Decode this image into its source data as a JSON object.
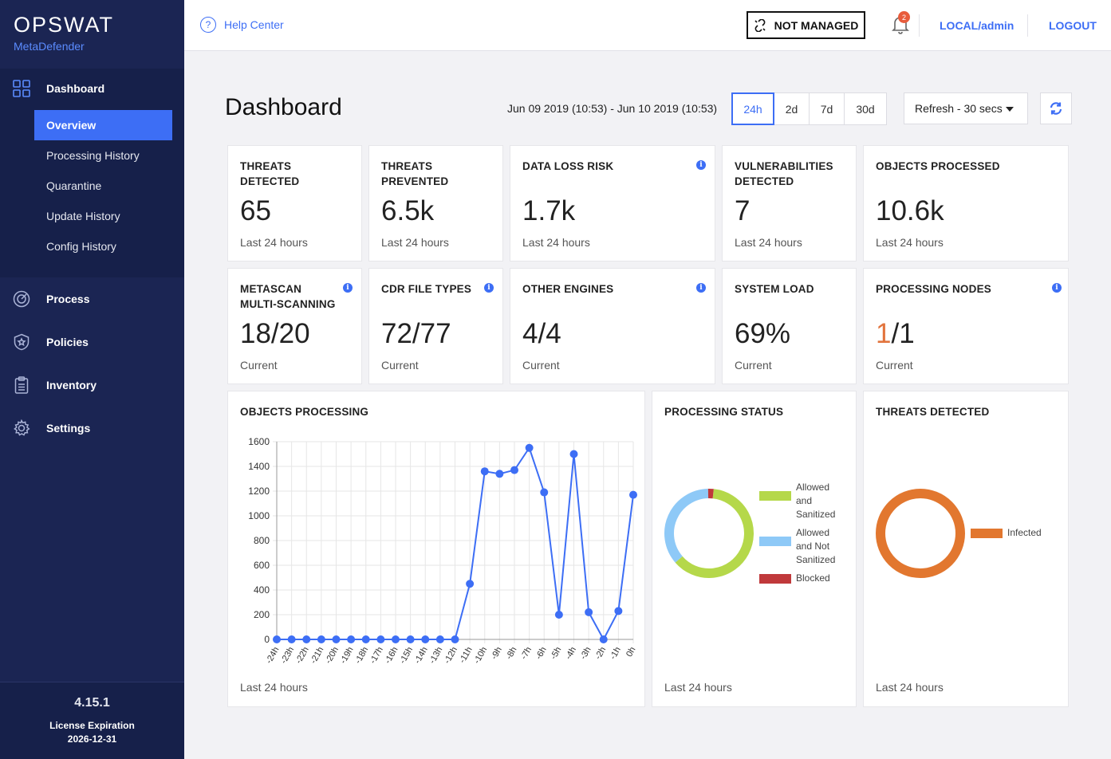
{
  "brand": {
    "name": "OPSWAT",
    "product": "MetaDefender"
  },
  "sidebar": {
    "dashboard_label": "Dashboard",
    "subitems": [
      "Overview",
      "Processing History",
      "Quarantine",
      "Update History",
      "Config History"
    ],
    "items": [
      {
        "label": "Process",
        "icon": "target-icon"
      },
      {
        "label": "Policies",
        "icon": "shield-star-icon"
      },
      {
        "label": "Inventory",
        "icon": "clipboard-icon"
      },
      {
        "label": "Settings",
        "icon": "gear-icon"
      }
    ],
    "version": "4.15.1",
    "license_label": "License Expiration",
    "license_date": "2026-12-31"
  },
  "topbar": {
    "help_label": "Help Center",
    "not_managed_label": "NOT MANAGED",
    "notification_count": "2",
    "user_label": "LOCAL/admin",
    "logout_label": "LOGOUT"
  },
  "header": {
    "title": "Dashboard",
    "date_range": "Jun 09 2019 (10:53) - Jun 10 2019 (10:53)",
    "ranges": [
      "24h",
      "2d",
      "7d",
      "30d"
    ],
    "selected_range": "24h",
    "refresh_label": "Refresh - 30 secs"
  },
  "stats": [
    {
      "title": "THREATS\nDETECTED",
      "value": "65",
      "sub": "Last 24 hours"
    },
    {
      "title": "THREATS\nPREVENTED",
      "value": "6.5k",
      "sub": "Last 24 hours"
    },
    {
      "title": "DATA LOSS RISK",
      "value": "1.7k",
      "sub": "Last 24 hours"
    },
    {
      "title": "VULNERABILITIES\nDETECTED",
      "value": "7",
      "sub": "Last 24 hours"
    },
    {
      "title": "OBJECTS PROCESSED",
      "value": "10.6k",
      "sub": "Last 24 hours"
    },
    {
      "title": "METASCAN\nMULTI-SCANNING",
      "value": "18/20",
      "sub": "Current"
    },
    {
      "title": "CDR FILE TYPES",
      "value": "72/77",
      "sub": "Current"
    },
    {
      "title": "OTHER ENGINES",
      "value": "4/4",
      "sub": "Current"
    },
    {
      "title": "SYSTEM LOAD",
      "value": "69%",
      "sub": "Current"
    },
    {
      "title": "PROCESSING NODES",
      "value_part1": "1",
      "value_part2": "/1",
      "sub": "Current"
    }
  ],
  "panels": {
    "objects_processing": {
      "title": "OBJECTS PROCESSING",
      "sub": "Last 24 hours"
    },
    "processing_status": {
      "title": "PROCESSING STATUS",
      "sub": "Last 24 hours"
    },
    "threats_detected": {
      "title": "THREATS DETECTED",
      "sub": "Last 24 hours"
    }
  },
  "colors": {
    "accent": "#3d6ef5",
    "sidebar": "#1b2553",
    "allowed_sanitized": "#b5d84a",
    "allowed_not_sanitized": "#8ec9f7",
    "blocked": "#c0393b",
    "infected": "#e2772f"
  },
  "chart_data": [
    {
      "type": "line",
      "x": [
        "-24h",
        "-23h",
        "-22h",
        "-21h",
        "-20h",
        "-19h",
        "-18h",
        "-17h",
        "-16h",
        "-15h",
        "-14h",
        "-13h",
        "-12h",
        "-11h",
        "-10h",
        "-9h",
        "-8h",
        "-7h",
        "-6h",
        "-5h",
        "-4h",
        "-3h",
        "-2h",
        "-1h",
        "0h"
      ],
      "values": [
        0,
        0,
        0,
        0,
        0,
        0,
        0,
        0,
        0,
        0,
        0,
        0,
        0,
        450,
        1360,
        1340,
        1370,
        1550,
        1190,
        200,
        1500,
        220,
        0,
        230,
        1170
      ],
      "ylim": [
        0,
        1600
      ],
      "yticks": [
        0,
        200,
        400,
        600,
        800,
        1000,
        1200,
        1400,
        1600
      ],
      "grid": true,
      "color": "#3d6ef5"
    },
    {
      "type": "pie",
      "subtype": "doughnut",
      "series": [
        {
          "name": "Allowed and Sanitized",
          "value": 62,
          "color": "#b5d84a"
        },
        {
          "name": "Allowed and Not Sanitized",
          "value": 36,
          "color": "#8ec9f7"
        },
        {
          "name": "Blocked",
          "value": 2,
          "color": "#c0393b"
        }
      ],
      "legend_lines": [
        [
          "Allowed",
          "and",
          "Sanitized"
        ],
        [
          "Allowed",
          "and Not",
          "Sanitized"
        ],
        [
          "Blocked"
        ]
      ],
      "legend": "right"
    },
    {
      "type": "pie",
      "subtype": "doughnut",
      "series": [
        {
          "name": "Infected",
          "value": 100,
          "color": "#e2772f"
        }
      ],
      "legend": "right"
    }
  ]
}
